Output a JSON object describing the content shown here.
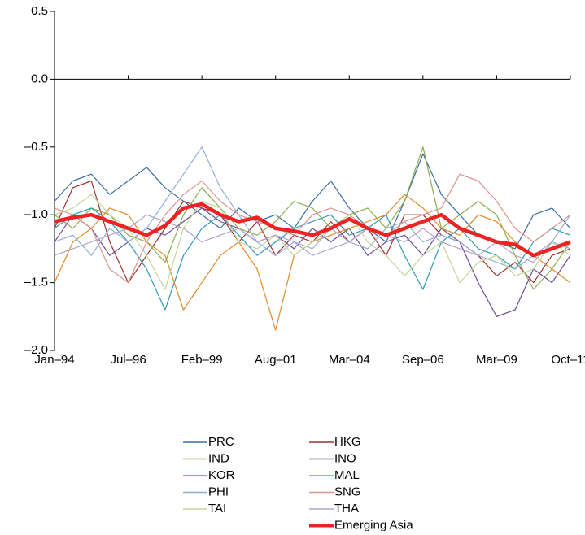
{
  "chart_data": {
    "type": "line",
    "categories": [
      "Jan–94",
      null,
      null,
      null,
      "Jul–96",
      null,
      null,
      null,
      "Feb–99",
      null,
      null,
      null,
      "Aug–01",
      null,
      null,
      null,
      "Mar–04",
      null,
      null,
      null,
      "Sep–06",
      null,
      null,
      null,
      "Mar–09",
      null,
      null,
      null,
      "Oct–11"
    ],
    "ylim": [
      -2.0,
      0.5
    ],
    "yticks": [
      0.5,
      {
        "value": 0.0,
        "label": "0.0"
      },
      {
        "value": -0.5,
        "label": "–0.5"
      },
      {
        "value": -1.0,
        "label": "–1.0"
      },
      {
        "value": -1.5,
        "label": "–1.5"
      },
      {
        "value": -2.0,
        "label": "–2.0"
      }
    ],
    "series": [
      {
        "name": "PRC",
        "color": "#3a6ea5",
        "values": [
          -0.9,
          -0.75,
          -0.7,
          -0.85,
          -0.75,
          -0.65,
          -0.8,
          -0.9,
          -1.0,
          -1.1,
          -0.95,
          -1.05,
          -1.0,
          -1.1,
          -0.9,
          -0.75,
          -0.95,
          -1.1,
          -1.2,
          -0.9,
          -0.55,
          -0.85,
          -1.0,
          -1.15,
          -1.2,
          -1.25,
          -1.0,
          -0.95,
          -1.1
        ]
      },
      {
        "name": "HKG",
        "color": "#a0302c",
        "values": [
          -1.1,
          -0.8,
          -0.75,
          -1.2,
          -1.5,
          -1.3,
          -1.1,
          -0.9,
          -0.95,
          -1.0,
          -1.2,
          -1.05,
          -1.3,
          -1.15,
          -1.2,
          -1.05,
          -1.2,
          -1.1,
          -1.3,
          -1.0,
          -1.0,
          -1.15,
          -1.2,
          -1.3,
          -1.45,
          -1.35,
          -1.5,
          -1.3,
          -1.25
        ]
      },
      {
        "name": "IND",
        "color": "#8cae4b",
        "values": [
          -1.0,
          -1.1,
          -0.95,
          -1.0,
          -1.15,
          -1.2,
          -1.35,
          -1.0,
          -0.8,
          -0.95,
          -1.1,
          -1.15,
          -1.05,
          -0.9,
          -0.95,
          -1.1,
          -1.0,
          -0.95,
          -1.1,
          -0.9,
          -0.5,
          -1.1,
          -1.0,
          -0.9,
          -1.0,
          -1.3,
          -1.55,
          -1.4,
          -1.2
        ]
      },
      {
        "name": "INO",
        "color": "#6e4c96",
        "values": [
          -1.2,
          -1.0,
          -1.1,
          -1.3,
          -1.2,
          -1.1,
          -1.15,
          -1.05,
          -0.95,
          -1.05,
          -1.1,
          -1.2,
          -1.15,
          -1.25,
          -1.1,
          -1.2,
          -1.1,
          -1.3,
          -1.2,
          -1.15,
          -1.3,
          -1.1,
          -1.2,
          -1.5,
          -1.75,
          -1.7,
          -1.4,
          -1.5,
          -1.3
        ]
      },
      {
        "name": "KOR",
        "color": "#2e9bb0",
        "values": [
          -1.1,
          -1.0,
          -0.95,
          -1.05,
          -1.2,
          -1.4,
          -1.7,
          -1.3,
          -1.1,
          -1.0,
          -1.15,
          -1.3,
          -1.2,
          -1.1,
          -1.05,
          -1.0,
          -1.15,
          -1.1,
          -1.0,
          -1.3,
          -1.55,
          -1.2,
          -1.1,
          -1.25,
          -1.3,
          -1.4,
          -1.2,
          -1.1,
          -1.15
        ]
      },
      {
        "name": "MAL",
        "color": "#e08a2c",
        "values": [
          -1.5,
          -1.2,
          -1.1,
          -0.95,
          -1.0,
          -1.2,
          -1.3,
          -1.7,
          -1.5,
          -1.3,
          -1.2,
          -1.4,
          -1.85,
          -1.3,
          -1.2,
          -1.15,
          -1.1,
          -1.05,
          -1.0,
          -0.85,
          -0.95,
          -1.1,
          -1.15,
          -1.0,
          -1.05,
          -1.2,
          -1.3,
          -1.4,
          -1.5
        ]
      },
      {
        "name": "PHI",
        "color": "#93aed8",
        "values": [
          -1.2,
          -1.15,
          -1.3,
          -1.1,
          -1.2,
          -1.1,
          -0.9,
          -0.7,
          -0.5,
          -0.8,
          -1.0,
          -1.2,
          -1.3,
          -1.2,
          -1.25,
          -1.1,
          -1.2,
          -1.25,
          -1.1,
          -1.05,
          -1.2,
          -1.15,
          -1.2,
          -1.3,
          -1.35,
          -1.4,
          -1.3,
          -1.2,
          -1.25
        ]
      },
      {
        "name": "SNG",
        "color": "#dc9490",
        "values": [
          -0.95,
          -1.0,
          -1.1,
          -1.4,
          -1.5,
          -1.2,
          -1.0,
          -0.85,
          -0.75,
          -0.9,
          -1.0,
          -1.05,
          -1.1,
          -1.15,
          -1.0,
          -0.95,
          -1.0,
          -1.1,
          -1.15,
          -1.05,
          -1.0,
          -0.95,
          -0.7,
          -0.75,
          -0.9,
          -1.1,
          -1.2,
          -1.1,
          -1.0
        ]
      },
      {
        "name": "TAI",
        "color": "#c3d69b",
        "values": [
          -1.0,
          -0.95,
          -0.85,
          -1.0,
          -1.1,
          -1.3,
          -1.55,
          -1.1,
          -0.9,
          -0.95,
          -1.2,
          -1.25,
          -1.15,
          -1.3,
          -1.2,
          -1.1,
          -1.0,
          -1.2,
          -1.3,
          -1.45,
          -1.3,
          -1.2,
          -1.5,
          -1.35,
          -1.3,
          -1.45,
          -1.4,
          -1.2,
          -1.3
        ]
      },
      {
        "name": "THA",
        "color": "#b2a3c8",
        "values": [
          -1.3,
          -1.25,
          -1.2,
          -1.15,
          -1.1,
          -1.0,
          -1.05,
          -1.1,
          -1.2,
          -1.15,
          -1.1,
          -1.2,
          -1.15,
          -1.2,
          -1.3,
          -1.25,
          -1.2,
          -1.1,
          -1.15,
          -1.2,
          -1.1,
          -1.2,
          -1.25,
          -1.3,
          -1.2,
          -1.3,
          -1.35,
          -1.2,
          -1.0
        ]
      },
      {
        "name": "Emerging Asia",
        "color": "#ee2222",
        "values": [
          -1.05,
          -1.02,
          -1.0,
          -1.05,
          -1.1,
          -1.15,
          -1.08,
          -0.95,
          -0.92,
          -1.0,
          -1.05,
          -1.02,
          -1.1,
          -1.12,
          -1.15,
          -1.1,
          -1.03,
          -1.1,
          -1.15,
          -1.1,
          -1.05,
          -1.0,
          -1.1,
          -1.15,
          -1.2,
          -1.22,
          -1.3,
          -1.25,
          -1.2
        ]
      }
    ]
  }
}
